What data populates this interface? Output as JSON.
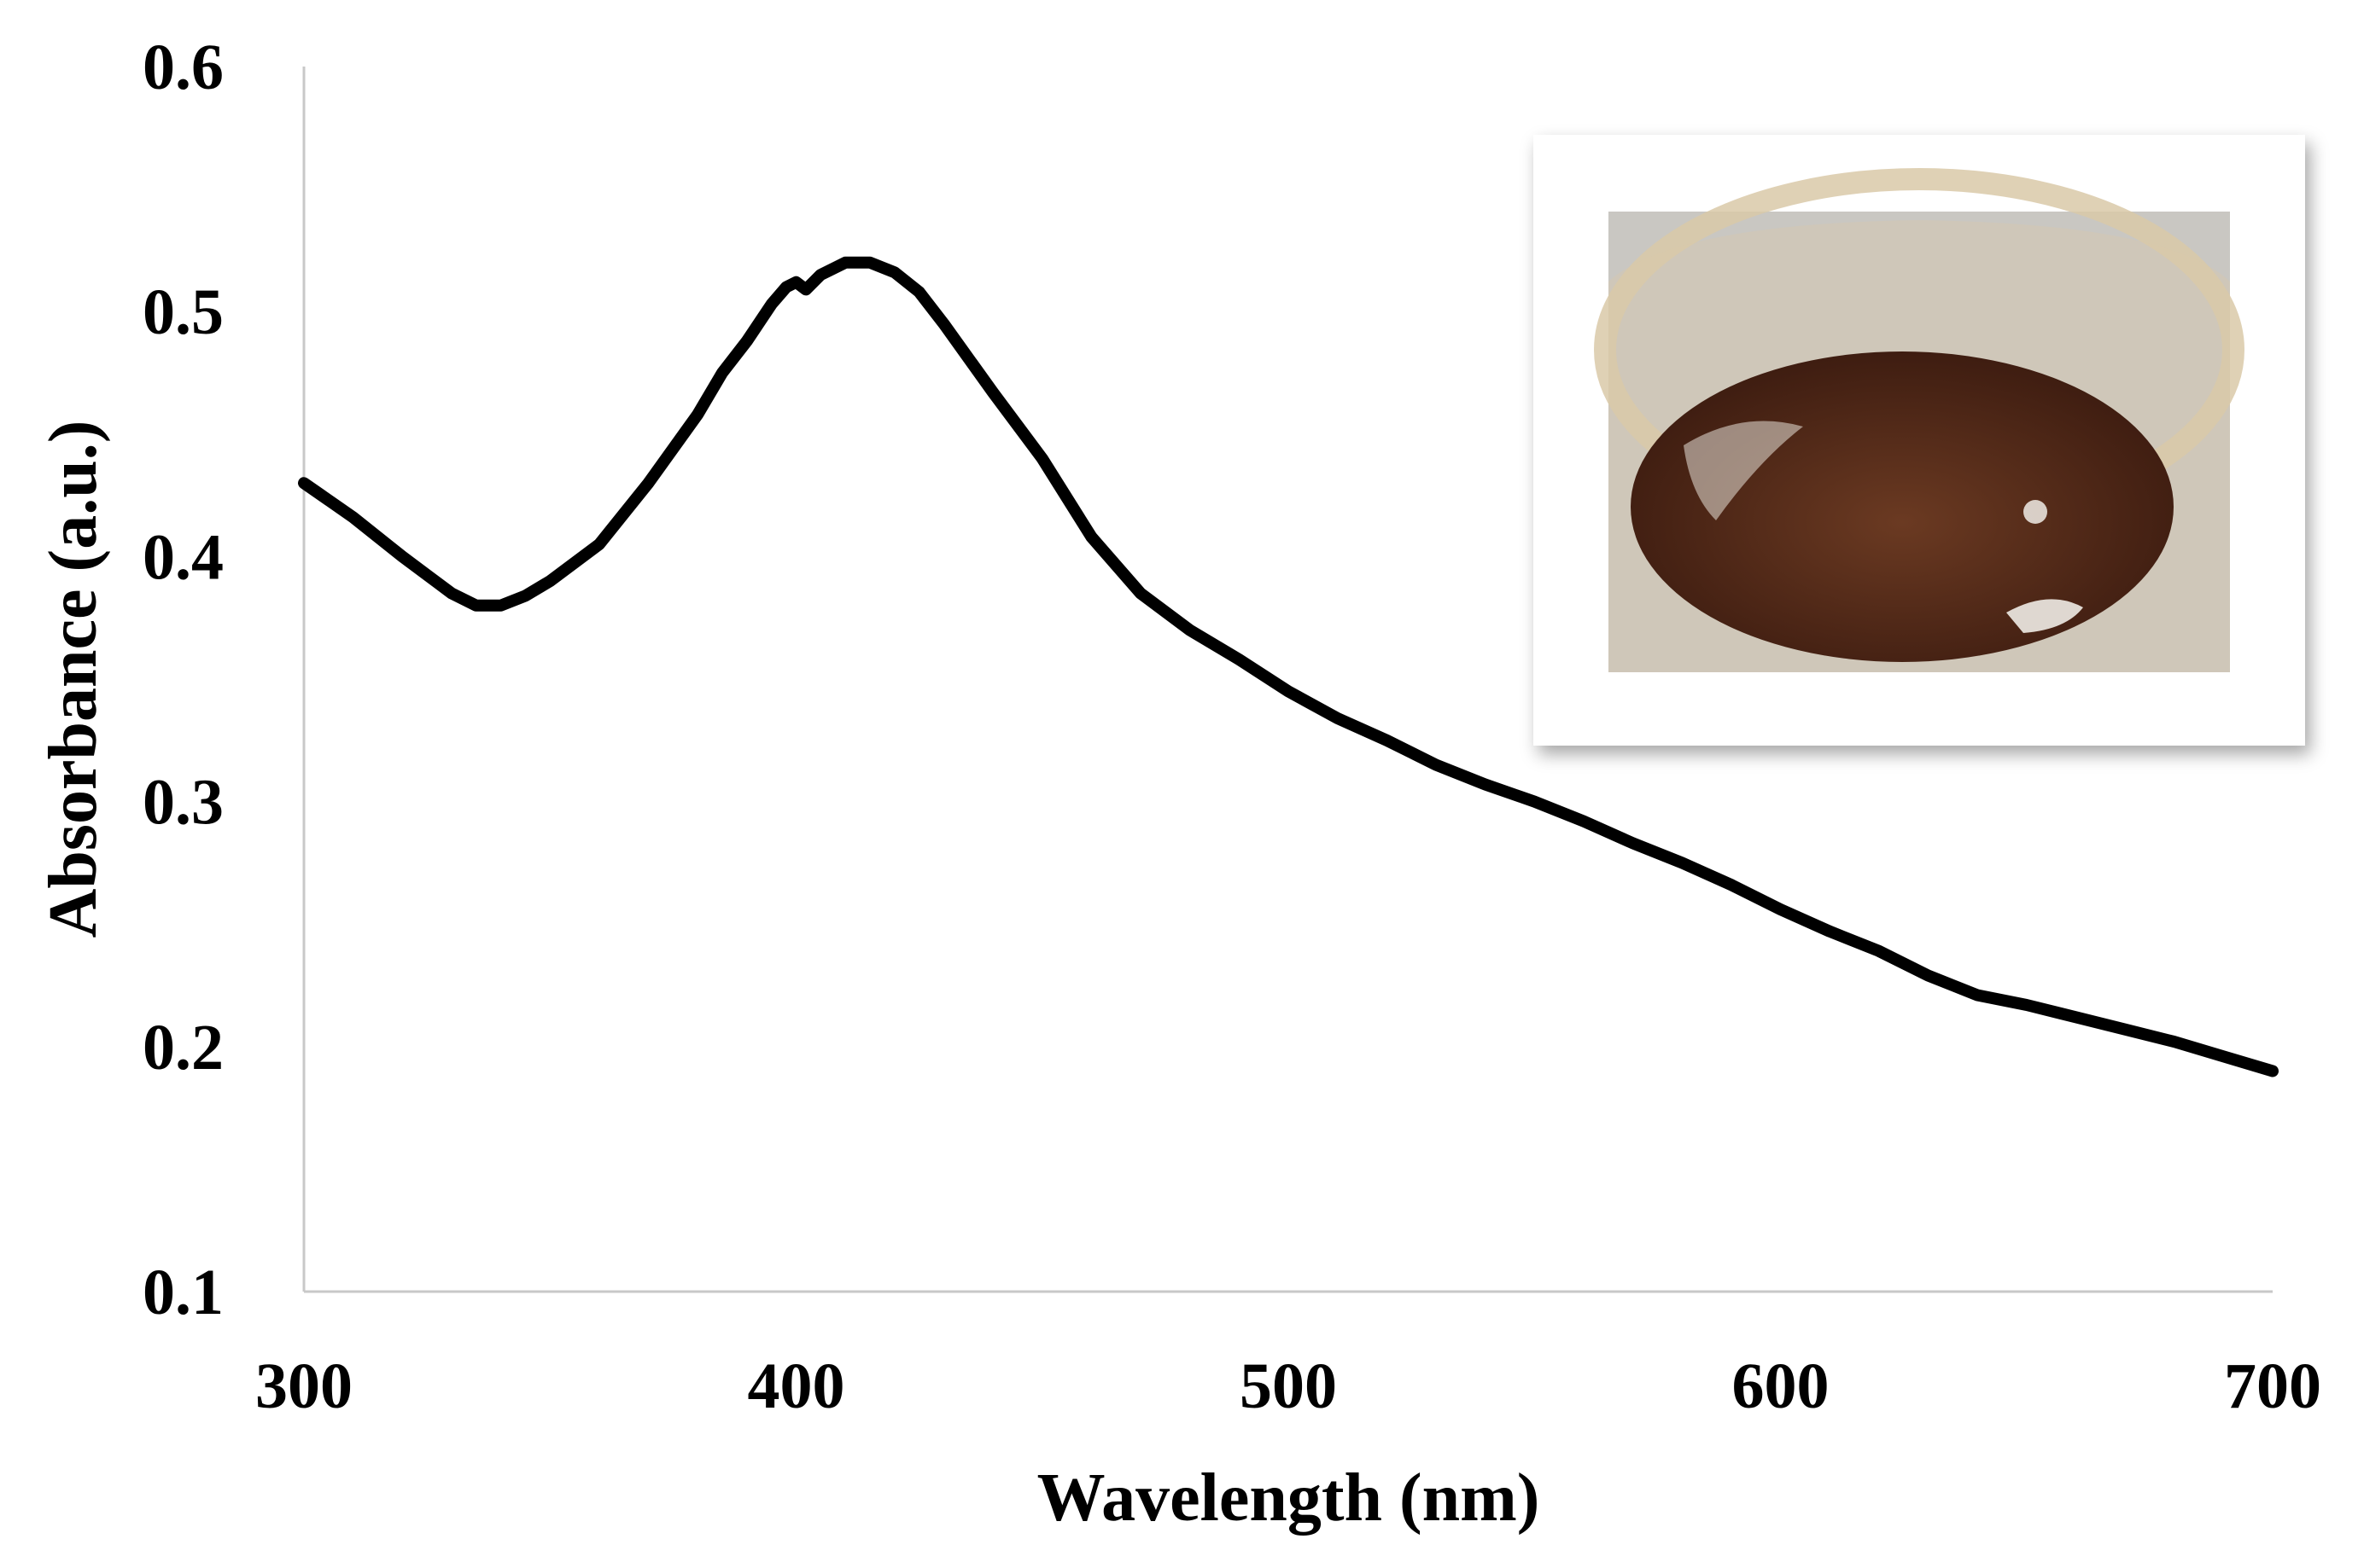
{
  "chart_data": {
    "type": "line",
    "title": "",
    "xlabel": "Wavelength (nm)",
    "ylabel": "Absorbance (a.u.)",
    "xlim": [
      300,
      700
    ],
    "ylim": [
      0.1,
      0.6
    ],
    "x_ticks": [
      "300",
      "400",
      "500",
      "600",
      "700"
    ],
    "y_ticks": [
      "0.1",
      "0.2",
      "0.3",
      "0.4",
      "0.5",
      "0.6"
    ],
    "grid": false,
    "legend": "none",
    "series": [
      {
        "color": "#000000",
        "x": [
          300,
          310,
          320,
          330,
          335,
          340,
          345,
          350,
          360,
          370,
          380,
          385,
          390,
          395,
          398,
          400,
          402,
          405,
          410,
          415,
          420,
          425,
          430,
          440,
          450,
          460,
          470,
          480,
          490,
          500,
          510,
          520,
          530,
          540,
          550,
          560,
          570,
          580,
          590,
          600,
          610,
          620,
          630,
          640,
          650,
          660,
          670,
          680,
          690,
          700
        ],
        "y": [
          0.43,
          0.416,
          0.4,
          0.385,
          0.38,
          0.38,
          0.384,
          0.39,
          0.405,
          0.43,
          0.458,
          0.475,
          0.488,
          0.503,
          0.51,
          0.512,
          0.509,
          0.515,
          0.52,
          0.52,
          0.516,
          0.508,
          0.495,
          0.467,
          0.44,
          0.408,
          0.385,
          0.37,
          0.358,
          0.345,
          0.334,
          0.325,
          0.315,
          0.307,
          0.3,
          0.292,
          0.283,
          0.275,
          0.266,
          0.256,
          0.247,
          0.239,
          0.229,
          0.221,
          0.217,
          0.212,
          0.207,
          0.202,
          0.196,
          0.19
        ]
      }
    ],
    "inset": {
      "type": "photograph",
      "subject": "glass beaker containing dark brown solution",
      "colors": {
        "frame": "#ffffff",
        "background": "#c9c7c2",
        "glass_rim": "#d9c9a8",
        "liquid": "#3a1a0f",
        "liquid_highlight": "#6b3a22"
      }
    }
  }
}
